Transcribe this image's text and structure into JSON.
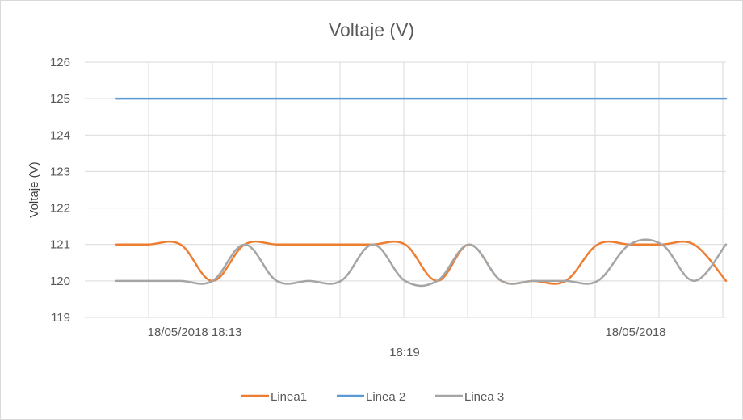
{
  "chart_data": {
    "type": "line",
    "title": "Voltaje (V)",
    "ylabel": "Voltaje (V)",
    "xlabel": "",
    "ylim": [
      119,
      126
    ],
    "yticks": [
      119,
      120,
      121,
      122,
      123,
      124,
      125,
      126
    ],
    "x_tick_labels": [
      "18/05/2018 18:13",
      "18:19",
      "18/05/2018"
    ],
    "grid": true,
    "legend_position": "bottom",
    "series": [
      {
        "name": "Linea1",
        "color": "#ED7D31",
        "values": [
          121,
          121,
          121,
          120,
          121,
          121,
          121,
          121,
          121,
          121,
          120,
          121,
          120,
          120,
          120,
          121,
          121,
          121,
          121,
          120
        ]
      },
      {
        "name": "Linea 2",
        "color": "#5B9BD5",
        "values": [
          125,
          125,
          125,
          125,
          125,
          125,
          125,
          125,
          125,
          125,
          125,
          125,
          125,
          125,
          125,
          125,
          125,
          125,
          125,
          125
        ]
      },
      {
        "name": "Linea 3",
        "color": "#A5A5A5",
        "values": [
          120,
          120,
          120,
          120,
          121,
          120,
          120,
          120,
          121,
          120,
          120,
          121,
          120,
          120,
          120,
          120,
          121,
          121,
          120,
          121
        ]
      }
    ]
  }
}
